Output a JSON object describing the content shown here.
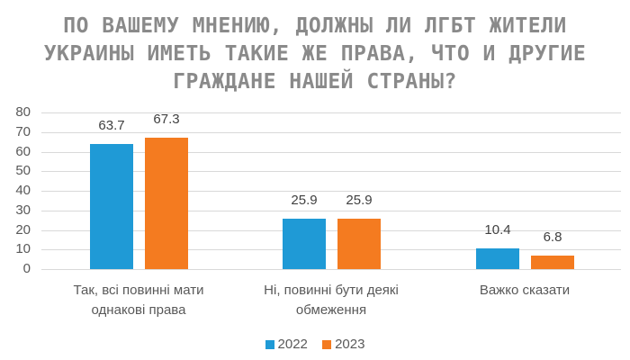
{
  "title": {
    "lines": [
      "ПО ВАШЕМУ МНЕНИЮ, ДОЛЖНЫ ЛИ ЛГБТ ЖИТЕЛИ",
      "УКРАИНЫ ИМЕТЬ ТАКИЕ ЖЕ ПРАВА, ЧТО И ДРУГИЕ",
      "ГРАЖДАНЕ НАШЕЙ СТРАНЫ?"
    ]
  },
  "colors": {
    "series_2022": "#1f9ad6",
    "series_2023": "#f47b20",
    "grid": "#d9d9d9"
  },
  "chart_data": {
    "type": "bar",
    "title": "ПО ВАШЕМУ МНЕНИЮ, ДОЛЖНЫ ЛИ ЛГБТ ЖИТЕЛИ УКРАИНЫ ИМЕТЬ ТАКИЕ ЖЕ ПРАВА, ЧТО И ДРУГИЕ ГРАЖДАНЕ НАШЕЙ СТРАНЫ?",
    "categories": [
      "Так, всі повинні мати однакові права",
      "Ні, повинні бути деякі обмеження",
      "Важко сказати"
    ],
    "series": [
      {
        "name": "2022",
        "values": [
          63.7,
          25.9,
          10.4
        ]
      },
      {
        "name": "2023",
        "values": [
          67.3,
          25.9,
          6.8
        ]
      }
    ],
    "xlabel": "",
    "ylabel": "",
    "ylim": [
      0,
      80
    ],
    "yticks": [
      0,
      10,
      20,
      30,
      40,
      50,
      60,
      70,
      80
    ],
    "grid": true,
    "legend_position": "bottom"
  },
  "axis": {
    "yticks": [
      "80",
      "70",
      "60",
      "50",
      "40",
      "30",
      "20",
      "10",
      "0"
    ]
  },
  "labels": {
    "values": [
      "63.7",
      "67.3",
      "25.9",
      "25.9",
      "10.4",
      "6.8"
    ],
    "categories": [
      [
        "Так, всі повинні мати",
        "однакові права"
      ],
      [
        "Ні, повинні бути деякі",
        "обмеження"
      ],
      [
        "Важко сказати",
        ""
      ]
    ]
  },
  "legend": {
    "items": [
      "2022",
      "2023"
    ]
  }
}
